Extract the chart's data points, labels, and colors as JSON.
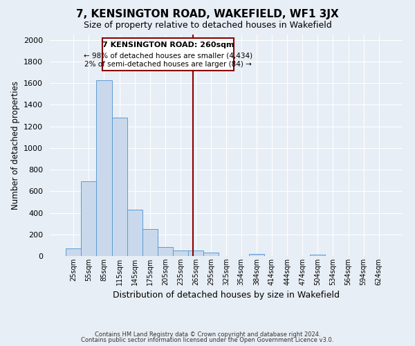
{
  "title": "7, KENSINGTON ROAD, WAKEFIELD, WF1 3JX",
  "subtitle": "Size of property relative to detached houses in Wakefield",
  "xlabel": "Distribution of detached houses by size in Wakefield",
  "ylabel": "Number of detached properties",
  "bar_color": "#c9d9eb",
  "bar_edge_color": "#5b9bd5",
  "background_color": "#e8eef5",
  "grid_color": "#ffffff",
  "vline_x": 260,
  "vline_color": "#8b0000",
  "annotation_title": "7 KENSINGTON ROAD: 260sqm",
  "annotation_line1": "← 98% of detached houses are smaller (4,434)",
  "annotation_line2": "2% of semi-detached houses are larger (84) →",
  "annotation_box_color": "#ffffff",
  "annotation_border_color": "#8b0000",
  "bin_edges": [
    10,
    40,
    70,
    100,
    130,
    160,
    190,
    220,
    250,
    280,
    310,
    339,
    369,
    399,
    429,
    459,
    489,
    519,
    549,
    579,
    609,
    639
  ],
  "bin_labels": [
    "25sqm",
    "55sqm",
    "85sqm",
    "115sqm",
    "145sqm",
    "175sqm",
    "205sqm",
    "235sqm",
    "265sqm",
    "295sqm",
    "325sqm",
    "354sqm",
    "384sqm",
    "414sqm",
    "444sqm",
    "474sqm",
    "504sqm",
    "534sqm",
    "564sqm",
    "594sqm",
    "624sqm"
  ],
  "bar_heights": [
    70,
    690,
    1630,
    1280,
    430,
    250,
    85,
    50,
    50,
    30,
    0,
    0,
    20,
    0,
    0,
    0,
    15,
    0,
    0,
    0,
    0
  ],
  "ylim": [
    0,
    2050
  ],
  "yticks": [
    0,
    200,
    400,
    600,
    800,
    1000,
    1200,
    1400,
    1600,
    1800,
    2000
  ],
  "footer1": "Contains HM Land Registry data © Crown copyright and database right 2024.",
  "footer2": "Contains public sector information licensed under the Open Government Licence v3.0."
}
